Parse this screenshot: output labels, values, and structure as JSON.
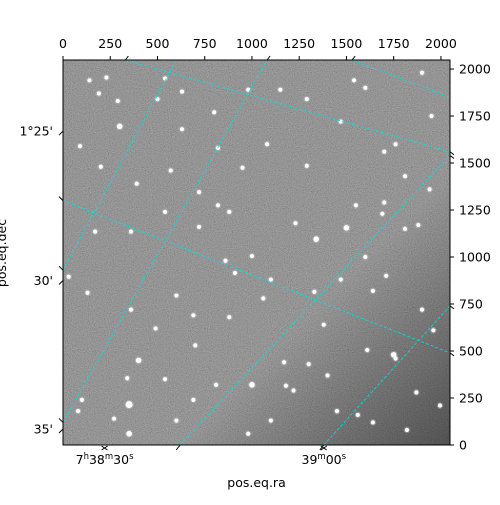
{
  "chart_data": {
    "type": "heatmap",
    "x_pixel_axis": {
      "ticks": [
        0,
        250,
        500,
        750,
        1000,
        1250,
        1500,
        1750,
        2000
      ],
      "range": [
        0,
        2048
      ]
    },
    "y_pixel_axis": {
      "ticks": [
        0,
        250,
        500,
        750,
        1000,
        1250,
        1500,
        1750,
        2000
      ],
      "range": [
        0,
        2048
      ]
    },
    "ra_axis": {
      "label": "pos.eq.ra",
      "ticks": [
        {
          "h": "7",
          "m": "38",
          "s": "30",
          "px": 220
        },
        {
          "h": "",
          "m": "39",
          "s": "00",
          "px": 1380
        }
      ]
    },
    "dec_axis": {
      "label": "pos.eq.dec",
      "ticks": [
        {
          "text": "1°25'",
          "py": 1670
        },
        {
          "text": "30'",
          "py": 875
        },
        {
          "text": "35'",
          "py": 85
        }
      ]
    },
    "grid_color": "#00e0e0",
    "grid_lines": {
      "family_a": [
        [
          [
            0,
            1300
          ],
          [
            2048,
            490
          ]
        ],
        [
          [
            330,
            2048
          ],
          [
            2048,
            1560
          ]
        ],
        [
          [
            1530,
            2048
          ],
          [
            2048,
            1850
          ]
        ]
      ],
      "family_b": [
        [
          [
            0,
            120
          ],
          [
            1080,
            2048
          ]
        ],
        [
          [
            0,
            930
          ],
          [
            600,
            2048
          ]
        ],
        [
          [
            620,
            0
          ],
          [
            2048,
            1540
          ]
        ],
        [
          [
            1380,
            0
          ],
          [
            2048,
            740
          ]
        ]
      ]
    },
    "stars": [
      [
        300,
        1695,
        4
      ],
      [
        1340,
        1095,
        4
      ],
      [
        360,
        1135,
        3
      ],
      [
        230,
        1955,
        3
      ],
      [
        1000,
        320,
        4
      ],
      [
        1500,
        1155,
        4
      ],
      [
        820,
        1275,
        3
      ],
      [
        720,
        1345,
        3
      ],
      [
        130,
        810,
        3
      ],
      [
        910,
        915,
        3
      ],
      [
        1170,
        440,
        3
      ],
      [
        1610,
        505,
        3
      ],
      [
        1750,
        480,
        4
      ],
      [
        400,
        450,
        4
      ],
      [
        340,
        355,
        3
      ],
      [
        350,
        215,
        5
      ],
      [
        350,
        60,
        4
      ],
      [
        980,
        60,
        3
      ],
      [
        1550,
        1275,
        3
      ],
      [
        1600,
        1000,
        3
      ],
      [
        1810,
        1150,
        3
      ],
      [
        1880,
        1170,
        3
      ],
      [
        1940,
        1360,
        3
      ],
      [
        1470,
        1720,
        3
      ],
      [
        1290,
        1840,
        3
      ],
      [
        1540,
        1940,
        3
      ],
      [
        170,
        1135,
        3
      ],
      [
        30,
        895,
        3
      ],
      [
        690,
        690,
        3
      ],
      [
        600,
        795,
        3
      ],
      [
        1600,
        1900,
        3
      ],
      [
        1700,
        1290,
        3
      ],
      [
        1760,
        460,
        3
      ],
      [
        1150,
        1890,
        3
      ],
      [
        1290,
        1485,
        3
      ],
      [
        1690,
        1230,
        3
      ],
      [
        1810,
        1430,
        3
      ],
      [
        1180,
        315,
        3
      ],
      [
        1450,
        180,
        3
      ],
      [
        1995,
        210,
        3
      ],
      [
        140,
        1940,
        3
      ],
      [
        190,
        1870,
        3
      ],
      [
        290,
        1830,
        3
      ],
      [
        500,
        1840,
        3
      ],
      [
        820,
        1580,
        3
      ],
      [
        950,
        1475,
        3
      ],
      [
        880,
        1240,
        3
      ],
      [
        570,
        1460,
        3
      ],
      [
        200,
        1480,
        3
      ],
      [
        360,
        720,
        3
      ],
      [
        490,
        620,
        3
      ],
      [
        700,
        530,
        3
      ],
      [
        540,
        350,
        3
      ],
      [
        810,
        320,
        3
      ],
      [
        690,
        240,
        3
      ],
      [
        1220,
        290,
        3
      ],
      [
        1400,
        370,
        3
      ],
      [
        1560,
        160,
        3
      ],
      [
        1870,
        280,
        3
      ],
      [
        1960,
        610,
        3
      ],
      [
        1900,
        720,
        3
      ],
      [
        1330,
        815,
        3
      ],
      [
        1060,
        780,
        3
      ],
      [
        880,
        680,
        3
      ],
      [
        1470,
        880,
        3
      ],
      [
        1710,
        900,
        3
      ],
      [
        1640,
        820,
        3
      ],
      [
        1000,
        1005,
        3
      ],
      [
        540,
        1240,
        3
      ],
      [
        390,
        1390,
        3
      ],
      [
        90,
        1590,
        3
      ],
      [
        630,
        1680,
        3
      ],
      [
        1080,
        1600,
        3
      ],
      [
        1700,
        1560,
        3
      ],
      [
        980,
        1890,
        3
      ],
      [
        1760,
        1600,
        3
      ],
      [
        100,
        240,
        3
      ],
      [
        80,
        180,
        3
      ],
      [
        600,
        130,
        3
      ],
      [
        270,
        140,
        3
      ],
      [
        1100,
        130,
        3
      ],
      [
        1300,
        430,
        3
      ],
      [
        1820,
        80,
        3
      ],
      [
        1640,
        120,
        3
      ],
      [
        540,
        1950,
        3
      ],
      [
        630,
        1880,
        3
      ],
      [
        800,
        1770,
        3
      ],
      [
        1900,
        1980,
        3
      ],
      [
        1950,
        1750,
        3
      ],
      [
        1380,
        640,
        3
      ],
      [
        1230,
        1180,
        3
      ],
      [
        720,
        1160,
        3
      ],
      [
        860,
        980,
        3
      ],
      [
        1100,
        880,
        3
      ]
    ]
  }
}
